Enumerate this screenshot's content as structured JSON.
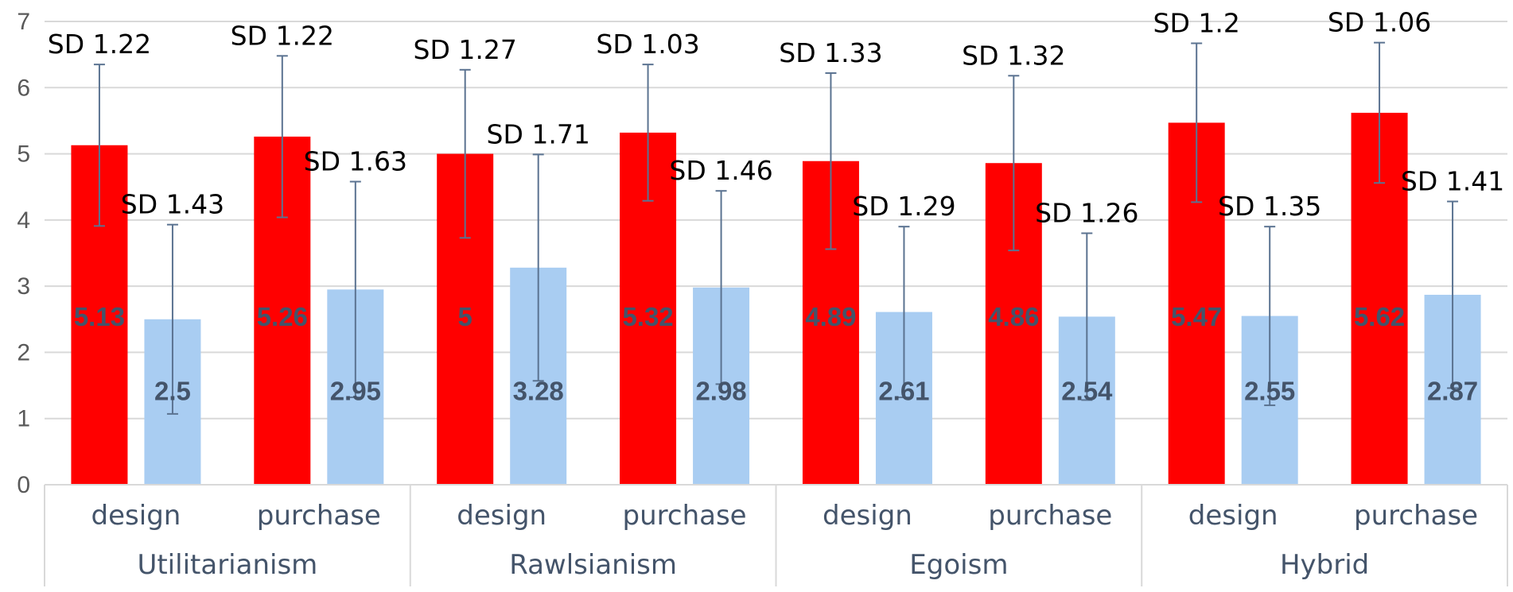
{
  "chart_data": {
    "type": "bar",
    "title": "",
    "xlabel": "",
    "ylabel": "",
    "ylim": [
      0,
      7
    ],
    "yticks": [
      0,
      1,
      2,
      3,
      4,
      5,
      6,
      7
    ],
    "grid": true,
    "groups": [
      {
        "label": "Utilitarianism",
        "bars": [
          {
            "category": "design",
            "values": [
              5.13,
              2.5
            ],
            "value_labels": [
              "5.13",
              "2.5"
            ],
            "sd": [
              1.22,
              1.43
            ],
            "sd_labels": [
              "SD 1.22",
              "SD 1.43"
            ]
          },
          {
            "category": "purchase",
            "values": [
              5.26,
              2.95
            ],
            "value_labels": [
              "5.26",
              "2.95"
            ],
            "sd": [
              1.22,
              1.63
            ],
            "sd_labels": [
              "SD 1.22",
              "SD 1.63"
            ]
          }
        ]
      },
      {
        "label": "Rawlsianism",
        "bars": [
          {
            "category": "design",
            "values": [
              5,
              3.28
            ],
            "value_labels": [
              "5",
              "3.28"
            ],
            "sd": [
              1.27,
              1.71
            ],
            "sd_labels": [
              "SD 1.27",
              "SD 1.71"
            ]
          },
          {
            "category": "purchase",
            "values": [
              5.32,
              2.98
            ],
            "value_labels": [
              "5.32",
              "2.98"
            ],
            "sd": [
              1.03,
              1.46
            ],
            "sd_labels": [
              "SD 1.03",
              "SD 1.46"
            ]
          }
        ]
      },
      {
        "label": "Egoism",
        "bars": [
          {
            "category": "design",
            "values": [
              4.89,
              2.61
            ],
            "value_labels": [
              "4.89",
              "2.61"
            ],
            "sd": [
              1.33,
              1.29
            ],
            "sd_labels": [
              "SD 1.33",
              "SD 1.29"
            ]
          },
          {
            "category": "purchase",
            "values": [
              4.86,
              2.54
            ],
            "value_labels": [
              "4.86",
              "2.54"
            ],
            "sd": [
              1.32,
              1.26
            ],
            "sd_labels": [
              "SD 1.32",
              "SD 1.26"
            ]
          }
        ]
      },
      {
        "label": "Hybrid",
        "bars": [
          {
            "category": "design",
            "values": [
              5.47,
              2.55
            ],
            "value_labels": [
              "5.47",
              "2.55"
            ],
            "sd": [
              1.2,
              1.35
            ],
            "sd_labels": [
              "SD 1.2",
              "SD 1.35"
            ]
          },
          {
            "category": "purchase",
            "values": [
              5.62,
              2.87
            ],
            "value_labels": [
              "5.62",
              "2.87"
            ],
            "sd": [
              1.06,
              1.41
            ],
            "sd_labels": [
              "SD 1.06",
              "SD 1.41"
            ]
          }
        ]
      }
    ],
    "series_colors": [
      "#FF0000",
      "#A9CDF2"
    ],
    "error_bar_color": "#5B7391",
    "axis_color": "#D9D9D9"
  }
}
